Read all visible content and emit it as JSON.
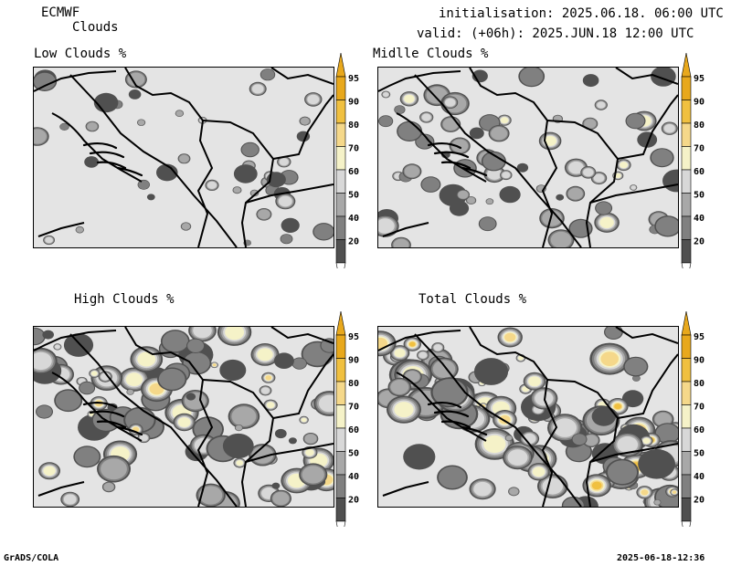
{
  "header": {
    "model": "ECMWF",
    "parameter": "Clouds",
    "initialisation": "initialisation: 2025.06.18. 06:00 UTC",
    "valid": "valid: (+06h): 2025.JUN.18 12:00 UTC"
  },
  "panels": [
    {
      "title": "Low Clouds %",
      "seed": 11,
      "density": 0.1
    },
    {
      "title": "Midlle Clouds %",
      "seed": 23,
      "density": 0.28
    },
    {
      "title": "High Clouds %",
      "seed": 37,
      "density": 0.45
    },
    {
      "title": "Total Clouds %",
      "seed": 53,
      "density": 0.62
    }
  ],
  "colorbar": {
    "levels": [
      "95",
      "90",
      "80",
      "70",
      "60",
      "50",
      "40",
      "20"
    ],
    "colors": [
      "#e8a81c",
      "#f0c040",
      "#f5d88a",
      "#f5f2c8",
      "#d8d8d8",
      "#a8a8a8",
      "#808080",
      "#505050"
    ],
    "over_color": "#e8a81c",
    "under_color": "#ffffff"
  },
  "footer": {
    "credit": "GrADS/COLA",
    "timestamp": "2025-06-18-12:36"
  }
}
